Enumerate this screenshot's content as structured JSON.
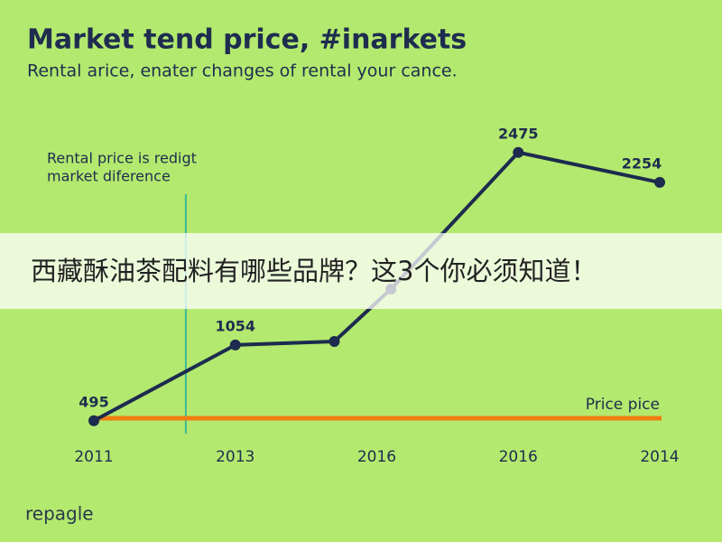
{
  "chart_data": {
    "type": "line",
    "title": "Market tend price, #inarkets",
    "subtitle": "Rental arice, enater changes of rental your cance.",
    "annotation": [
      "Rental price is redigt",
      "market diference"
    ],
    "x": [
      0,
      1,
      1.7,
      2.1,
      3,
      4
    ],
    "xlim": [
      0,
      4
    ],
    "xticks": [
      {
        "value": 0,
        "label": "2011"
      },
      {
        "value": 1,
        "label": "2013"
      },
      {
        "value": 2,
        "label": "2016"
      },
      {
        "value": 3,
        "label": "2016"
      },
      {
        "value": 4,
        "label": "2014"
      }
    ],
    "ylim": [
      0,
      2600
    ],
    "series": [
      {
        "color": "#1c2b4e",
        "values": [
          495,
          1054,
          1080,
          1467,
          2475,
          2254
        ],
        "value_labels": [
          "495",
          "1054",
          null,
          null,
          "2475",
          "2254"
        ]
      }
    ],
    "reference_line": {
      "label": "Price pice",
      "value": 513,
      "color": "#f07d12"
    },
    "marker_line": {
      "x": 0.65,
      "color": "#3bb89a"
    }
  },
  "banner": {
    "text": "西藏酥油茶配料有哪些品牌？这3个你必须知道！"
  },
  "watermark": "repagle"
}
